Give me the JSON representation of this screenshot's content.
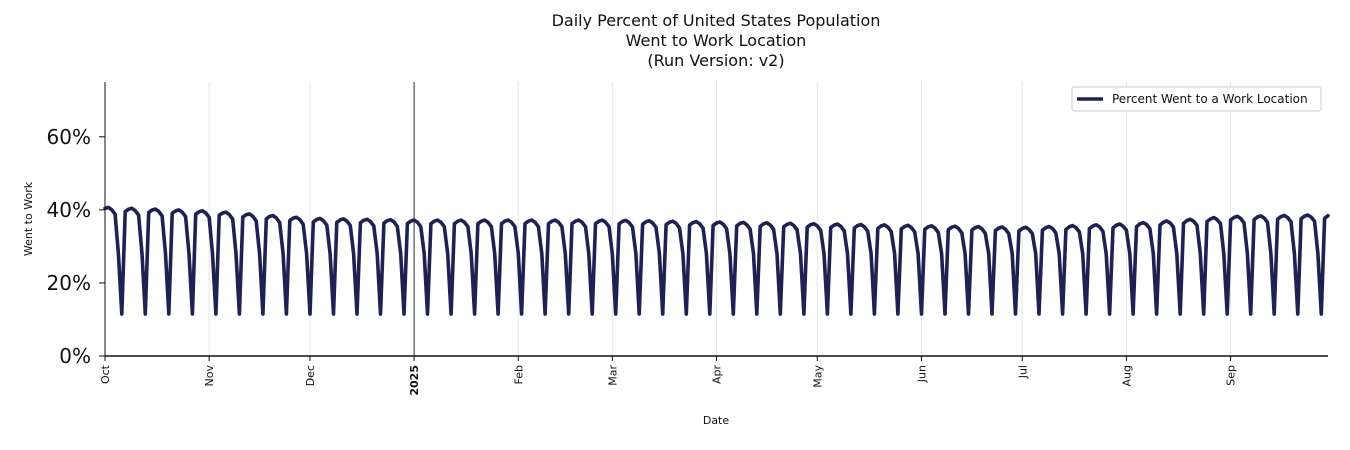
{
  "chart_data": {
    "type": "line",
    "title_lines": [
      "Daily Percent of United States Population",
      "Went to Work Location",
      "(Run Version: v2)"
    ],
    "xlabel": "Date",
    "ylabel": "Went to Work",
    "ylim": [
      0,
      75
    ],
    "y_ticks": [
      "0%",
      "20%",
      "40%",
      "60%"
    ],
    "y_tick_values": [
      0,
      20,
      40,
      60
    ],
    "x_ticks": [
      {
        "label": "Oct",
        "day": 0,
        "bold": false
      },
      {
        "label": "Nov",
        "day": 31,
        "bold": false
      },
      {
        "label": "Dec",
        "day": 61,
        "bold": false
      },
      {
        "label": "2025",
        "day": 92,
        "bold": true
      },
      {
        "label": "Feb",
        "day": 123,
        "bold": false
      },
      {
        "label": "Mar",
        "day": 151,
        "bold": false
      },
      {
        "label": "Apr",
        "day": 182,
        "bold": false
      },
      {
        "label": "May",
        "day": 212,
        "bold": false
      },
      {
        "label": "Jun",
        "day": 243,
        "bold": false
      },
      {
        "label": "Jul",
        "day": 273,
        "bold": false
      },
      {
        "label": "Aug",
        "day": 304,
        "bold": false
      },
      {
        "label": "Sep",
        "day": 335,
        "bold": false
      }
    ],
    "x_start": "2024-10-01",
    "x_end_day": 364,
    "vline_day": 92,
    "series": [
      {
        "name": "Percent Went to a Work Location",
        "color": "#1e2152"
      }
    ],
    "weekday_level_by_month": [
      {
        "day": 0,
        "value": 39.5
      },
      {
        "day": 31,
        "value": 38.5
      },
      {
        "day": 61,
        "value": 36.5
      },
      {
        "day": 92,
        "value": 36
      },
      {
        "day": 123,
        "value": 36
      },
      {
        "day": 151,
        "value": 36
      },
      {
        "day": 182,
        "value": 35.5
      },
      {
        "day": 212,
        "value": 35
      },
      {
        "day": 243,
        "value": 34.5
      },
      {
        "day": 273,
        "value": 34
      },
      {
        "day": 304,
        "value": 35
      },
      {
        "day": 335,
        "value": 37
      },
      {
        "day": 364,
        "value": 37.5
      }
    ],
    "weekend_low": 11.5,
    "saturday_level": 28
  }
}
